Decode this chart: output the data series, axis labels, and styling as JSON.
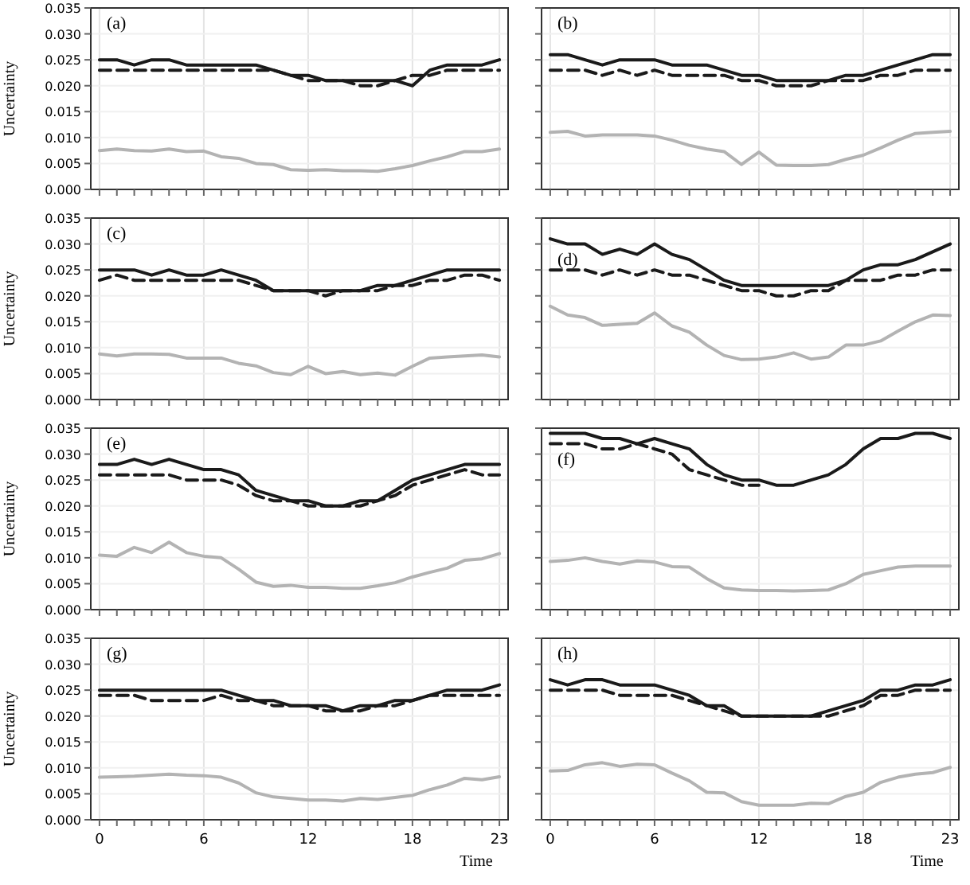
{
  "chart_data": [
    {
      "type": "line",
      "annotations": [
        "(a)"
      ],
      "ylabel": "Uncertainty",
      "xlim": [
        -0.5,
        23.5
      ],
      "ylim": [
        0,
        0.035
      ],
      "xticks": [
        0,
        {
          "value": 1,
          "label": null
        },
        {
          "value": 2,
          "label": null
        },
        {
          "value": 3,
          "label": null
        },
        {
          "value": 4,
          "label": null
        },
        {
          "value": 5,
          "label": null
        },
        6,
        {
          "value": 7,
          "label": null
        },
        {
          "value": 8,
          "label": null
        },
        {
          "value": 9,
          "label": null
        },
        {
          "value": 10,
          "label": null
        },
        {
          "value": 11,
          "label": null
        },
        12,
        {
          "value": 13,
          "label": null
        },
        {
          "value": 14,
          "label": null
        },
        {
          "value": 15,
          "label": null
        },
        {
          "value": 16,
          "label": null
        },
        {
          "value": 17,
          "label": null
        },
        18,
        {
          "value": 19,
          "label": null
        },
        {
          "value": 20,
          "label": null
        },
        {
          "value": 21,
          "label": null
        },
        {
          "value": 22,
          "label": null
        },
        23
      ],
      "yticks": [
        {
          "value": 0,
          "label": "0.000"
        },
        0.005,
        {
          "value": 0.01,
          "label": "0.010"
        },
        0.015,
        {
          "value": 0.02,
          "label": "0.020"
        },
        0.025,
        {
          "value": 0.03,
          "label": "0.030"
        },
        0.035
      ],
      "grid": true,
      "tick_labels": "y",
      "x": [
        0,
        1,
        2,
        3,
        4,
        5,
        6,
        7,
        8,
        9,
        10,
        11,
        12,
        13,
        14,
        15,
        16,
        17,
        18,
        19,
        20,
        21,
        22,
        23
      ],
      "series": [
        {
          "color": "#1a1a1a",
          "line_style": "solid",
          "values": [
            0.025,
            0.025,
            0.024,
            0.025,
            0.025,
            0.024,
            0.024,
            0.024,
            0.024,
            0.024,
            0.023,
            0.022,
            0.022,
            0.021,
            0.021,
            0.021,
            0.021,
            0.021,
            0.02,
            0.023,
            0.024,
            0.024,
            0.024,
            0.025
          ]
        },
        {
          "color": "#1a1a1a",
          "line_style": "dashed",
          "values": [
            0.023,
            0.023,
            0.023,
            0.023,
            0.023,
            0.023,
            0.023,
            0.023,
            0.023,
            0.023,
            0.023,
            0.022,
            0.021,
            0.021,
            0.021,
            0.02,
            0.02,
            0.021,
            0.022,
            0.022,
            0.023,
            0.023,
            0.023,
            0.023
          ]
        },
        {
          "color": "#b3b3b3",
          "line_style": "solid",
          "values": [
            0.0075,
            0.0078,
            0.0075,
            0.0074,
            0.0078,
            0.0073,
            0.0074,
            0.0063,
            0.006,
            0.005,
            0.0048,
            0.0038,
            0.0037,
            0.0038,
            0.0036,
            0.0036,
            0.0035,
            0.004,
            0.0046,
            0.0055,
            0.0063,
            0.0073,
            0.0073,
            0.0078
          ]
        }
      ]
    },
    {
      "type": "line",
      "annotations": [
        "(b)"
      ],
      "xlim": [
        -0.5,
        23.5
      ],
      "ylim": [
        0,
        0.035
      ],
      "xticks": [
        0,
        {
          "value": 1,
          "label": null
        },
        {
          "value": 2,
          "label": null
        },
        {
          "value": 3,
          "label": null
        },
        {
          "value": 4,
          "label": null
        },
        {
          "value": 5,
          "label": null
        },
        6,
        {
          "value": 7,
          "label": null
        },
        {
          "value": 8,
          "label": null
        },
        {
          "value": 9,
          "label": null
        },
        {
          "value": 10,
          "label": null
        },
        {
          "value": 11,
          "label": null
        },
        12,
        {
          "value": 13,
          "label": null
        },
        {
          "value": 14,
          "label": null
        },
        {
          "value": 15,
          "label": null
        },
        {
          "value": 16,
          "label": null
        },
        {
          "value": 17,
          "label": null
        },
        18,
        {
          "value": 19,
          "label": null
        },
        {
          "value": 20,
          "label": null
        },
        {
          "value": 21,
          "label": null
        },
        {
          "value": 22,
          "label": null
        },
        23
      ],
      "yticks": [
        0,
        0.005,
        0.01,
        0.015,
        0.02,
        0.025,
        0.03,
        0.035
      ],
      "grid": true,
      "tick_labels": false,
      "x": [
        0,
        1,
        2,
        3,
        4,
        5,
        6,
        7,
        8,
        9,
        10,
        11,
        12,
        13,
        14,
        15,
        16,
        17,
        18,
        19,
        20,
        21,
        22,
        23
      ],
      "series": [
        {
          "color": "#1a1a1a",
          "line_style": "solid",
          "values": [
            0.026,
            0.026,
            0.025,
            0.024,
            0.025,
            0.025,
            0.025,
            0.024,
            0.024,
            0.024,
            0.023,
            0.022,
            0.022,
            0.021,
            0.021,
            0.021,
            0.021,
            0.022,
            0.022,
            0.023,
            0.024,
            0.025,
            0.026,
            0.026
          ]
        },
        {
          "color": "#1a1a1a",
          "line_style": "dashed",
          "values": [
            0.023,
            0.023,
            0.023,
            0.022,
            0.023,
            0.022,
            0.023,
            0.022,
            0.022,
            0.022,
            0.022,
            0.021,
            0.021,
            0.02,
            0.02,
            0.02,
            0.021,
            0.021,
            0.021,
            0.022,
            0.022,
            0.023,
            0.023,
            0.023
          ]
        },
        {
          "color": "#b3b3b3",
          "line_style": "solid",
          "values": [
            0.011,
            0.0112,
            0.0103,
            0.0105,
            0.0105,
            0.0105,
            0.0103,
            0.0095,
            0.0085,
            0.0078,
            0.0073,
            0.0048,
            0.0072,
            0.0047,
            0.0046,
            0.0046,
            0.0048,
            0.0058,
            0.0066,
            0.008,
            0.0095,
            0.0108,
            0.011,
            0.0112
          ]
        }
      ]
    },
    {
      "type": "line",
      "annotations": [
        "(c)"
      ],
      "ylabel": "Uncertainty",
      "xlim": [
        -0.5,
        23.5
      ],
      "ylim": [
        0,
        0.035
      ],
      "xticks": [
        0,
        {
          "value": 1,
          "label": null
        },
        {
          "value": 2,
          "label": null
        },
        {
          "value": 3,
          "label": null
        },
        {
          "value": 4,
          "label": null
        },
        {
          "value": 5,
          "label": null
        },
        6,
        {
          "value": 7,
          "label": null
        },
        {
          "value": 8,
          "label": null
        },
        {
          "value": 9,
          "label": null
        },
        {
          "value": 10,
          "label": null
        },
        {
          "value": 11,
          "label": null
        },
        12,
        {
          "value": 13,
          "label": null
        },
        {
          "value": 14,
          "label": null
        },
        {
          "value": 15,
          "label": null
        },
        {
          "value": 16,
          "label": null
        },
        {
          "value": 17,
          "label": null
        },
        18,
        {
          "value": 19,
          "label": null
        },
        {
          "value": 20,
          "label": null
        },
        {
          "value": 21,
          "label": null
        },
        {
          "value": 22,
          "label": null
        },
        23
      ],
      "yticks": [
        {
          "value": 0,
          "label": "0.000"
        },
        0.005,
        {
          "value": 0.01,
          "label": "0.010"
        },
        0.015,
        {
          "value": 0.02,
          "label": "0.020"
        },
        0.025,
        {
          "value": 0.03,
          "label": "0.030"
        },
        0.035
      ],
      "grid": true,
      "tick_labels": "y",
      "x": [
        0,
        1,
        2,
        3,
        4,
        5,
        6,
        7,
        8,
        9,
        10,
        11,
        12,
        13,
        14,
        15,
        16,
        17,
        18,
        19,
        20,
        21,
        22,
        23
      ],
      "series": [
        {
          "color": "#1a1a1a",
          "line_style": "solid",
          "values": [
            0.025,
            0.025,
            0.025,
            0.024,
            0.025,
            0.024,
            0.024,
            0.025,
            0.024,
            0.023,
            0.021,
            0.021,
            0.021,
            0.021,
            0.021,
            0.021,
            0.022,
            0.022,
            0.023,
            0.024,
            0.025,
            0.025,
            0.025,
            0.025
          ]
        },
        {
          "color": "#1a1a1a",
          "line_style": "dashed",
          "values": [
            0.023,
            0.024,
            0.023,
            0.023,
            0.023,
            0.023,
            0.023,
            0.023,
            0.023,
            0.022,
            0.021,
            0.021,
            0.021,
            0.02,
            0.021,
            0.021,
            0.021,
            0.022,
            0.022,
            0.023,
            0.023,
            0.024,
            0.024,
            0.023
          ]
        },
        {
          "color": "#b3b3b3",
          "line_style": "solid",
          "values": [
            0.0088,
            0.0084,
            0.0088,
            0.0088,
            0.0087,
            0.008,
            0.008,
            0.008,
            0.007,
            0.0065,
            0.0052,
            0.0048,
            0.0064,
            0.005,
            0.0054,
            0.0048,
            0.0051,
            0.0047,
            0.0064,
            0.008,
            0.0082,
            0.0084,
            0.0086,
            0.0082
          ]
        }
      ]
    },
    {
      "type": "line",
      "annotations": [
        "(d)"
      ],
      "xlim": [
        -0.5,
        23.5
      ],
      "ylim": [
        0,
        0.035
      ],
      "xticks": [
        0,
        {
          "value": 1,
          "label": null
        },
        {
          "value": 2,
          "label": null
        },
        {
          "value": 3,
          "label": null
        },
        {
          "value": 4,
          "label": null
        },
        {
          "value": 5,
          "label": null
        },
        6,
        {
          "value": 7,
          "label": null
        },
        {
          "value": 8,
          "label": null
        },
        {
          "value": 9,
          "label": null
        },
        {
          "value": 10,
          "label": null
        },
        {
          "value": 11,
          "label": null
        },
        12,
        {
          "value": 13,
          "label": null
        },
        {
          "value": 14,
          "label": null
        },
        {
          "value": 15,
          "label": null
        },
        {
          "value": 16,
          "label": null
        },
        {
          "value": 17,
          "label": null
        },
        18,
        {
          "value": 19,
          "label": null
        },
        {
          "value": 20,
          "label": null
        },
        {
          "value": 21,
          "label": null
        },
        {
          "value": 22,
          "label": null
        },
        23
      ],
      "yticks": [
        0,
        0.005,
        0.01,
        0.015,
        0.02,
        0.025,
        0.03,
        0.035
      ],
      "grid": true,
      "tick_labels": false,
      "x": [
        0,
        1,
        2,
        3,
        4,
        5,
        6,
        7,
        8,
        9,
        10,
        11,
        12,
        13,
        14,
        15,
        16,
        17,
        18,
        19,
        20,
        21,
        22,
        23
      ],
      "series": [
        {
          "color": "#1a1a1a",
          "line_style": "solid",
          "values": [
            0.031,
            0.03,
            0.03,
            0.028,
            0.029,
            0.028,
            0.03,
            0.028,
            0.027,
            0.025,
            0.023,
            0.022,
            0.022,
            0.022,
            0.022,
            0.022,
            0.022,
            0.023,
            0.025,
            0.026,
            0.026,
            0.027,
            0.0285,
            0.03
          ]
        },
        {
          "color": "#1a1a1a",
          "line_style": "dashed",
          "values": [
            0.025,
            0.025,
            0.025,
            0.024,
            0.025,
            0.024,
            0.025,
            0.024,
            0.024,
            0.023,
            0.022,
            0.021,
            0.021,
            0.02,
            0.02,
            0.021,
            0.021,
            0.023,
            0.023,
            0.023,
            0.024,
            0.024,
            0.025,
            0.025
          ]
        },
        {
          "color": "#b3b3b3",
          "line_style": "solid",
          "values": [
            0.018,
            0.0163,
            0.0158,
            0.0143,
            0.0145,
            0.0147,
            0.0167,
            0.0142,
            0.013,
            0.0105,
            0.0085,
            0.0077,
            0.0078,
            0.0082,
            0.009,
            0.0078,
            0.0082,
            0.0105,
            0.0105,
            0.0113,
            0.0132,
            0.015,
            0.0163,
            0.0162
          ]
        }
      ]
    },
    {
      "type": "line",
      "annotations": [
        "(e)"
      ],
      "ylabel": "Uncertainty",
      "xlim": [
        -0.5,
        23.5
      ],
      "ylim": [
        0,
        0.035
      ],
      "xticks": [
        0,
        {
          "value": 1,
          "label": null
        },
        {
          "value": 2,
          "label": null
        },
        {
          "value": 3,
          "label": null
        },
        {
          "value": 4,
          "label": null
        },
        {
          "value": 5,
          "label": null
        },
        6,
        {
          "value": 7,
          "label": null
        },
        {
          "value": 8,
          "label": null
        },
        {
          "value": 9,
          "label": null
        },
        {
          "value": 10,
          "label": null
        },
        {
          "value": 11,
          "label": null
        },
        12,
        {
          "value": 13,
          "label": null
        },
        {
          "value": 14,
          "label": null
        },
        {
          "value": 15,
          "label": null
        },
        {
          "value": 16,
          "label": null
        },
        {
          "value": 17,
          "label": null
        },
        18,
        {
          "value": 19,
          "label": null
        },
        {
          "value": 20,
          "label": null
        },
        {
          "value": 21,
          "label": null
        },
        {
          "value": 22,
          "label": null
        },
        23
      ],
      "yticks": [
        {
          "value": 0,
          "label": "0.000"
        },
        0.005,
        {
          "value": 0.01,
          "label": "0.010"
        },
        0.015,
        {
          "value": 0.02,
          "label": "0.020"
        },
        0.025,
        {
          "value": 0.03,
          "label": "0.030"
        },
        0.035
      ],
      "grid": true,
      "tick_labels": "y",
      "x": [
        0,
        1,
        2,
        3,
        4,
        5,
        6,
        7,
        8,
        9,
        10,
        11,
        12,
        13,
        14,
        15,
        16,
        17,
        18,
        19,
        20,
        21,
        22,
        23
      ],
      "series": [
        {
          "color": "#1a1a1a",
          "line_style": "solid",
          "values": [
            0.028,
            0.028,
            0.029,
            0.028,
            0.029,
            0.028,
            0.027,
            0.027,
            0.026,
            0.023,
            0.022,
            0.021,
            0.021,
            0.02,
            0.02,
            0.021,
            0.021,
            0.023,
            0.025,
            0.026,
            0.027,
            0.028,
            0.028,
            0.028
          ]
        },
        {
          "color": "#1a1a1a",
          "line_style": "dashed",
          "values": [
            0.026,
            0.026,
            0.026,
            0.026,
            0.026,
            0.025,
            0.025,
            0.025,
            0.024,
            0.022,
            0.021,
            0.021,
            0.02,
            0.02,
            0.02,
            0.02,
            0.021,
            0.022,
            0.024,
            0.025,
            0.026,
            0.027,
            0.026,
            0.026
          ]
        },
        {
          "color": "#b3b3b3",
          "line_style": "solid",
          "values": [
            0.0105,
            0.0103,
            0.012,
            0.011,
            0.013,
            0.011,
            0.0103,
            0.01,
            0.0078,
            0.0053,
            0.0045,
            0.0047,
            0.0043,
            0.0043,
            0.0041,
            0.0041,
            0.0046,
            0.0052,
            0.0063,
            0.0072,
            0.008,
            0.0095,
            0.0098,
            0.0108
          ]
        }
      ]
    },
    {
      "type": "line",
      "annotations": [
        "(f)"
      ],
      "xlim": [
        -0.5,
        23.5
      ],
      "ylim": [
        0,
        0.035
      ],
      "xticks": [
        0,
        {
          "value": 1,
          "label": null
        },
        {
          "value": 2,
          "label": null
        },
        {
          "value": 3,
          "label": null
        },
        {
          "value": 4,
          "label": null
        },
        {
          "value": 5,
          "label": null
        },
        6,
        {
          "value": 7,
          "label": null
        },
        {
          "value": 8,
          "label": null
        },
        {
          "value": 9,
          "label": null
        },
        {
          "value": 10,
          "label": null
        },
        {
          "value": 11,
          "label": null
        },
        12,
        {
          "value": 13,
          "label": null
        },
        {
          "value": 14,
          "label": null
        },
        {
          "value": 15,
          "label": null
        },
        {
          "value": 16,
          "label": null
        },
        {
          "value": 17,
          "label": null
        },
        18,
        {
          "value": 19,
          "label": null
        },
        {
          "value": 20,
          "label": null
        },
        {
          "value": 21,
          "label": null
        },
        {
          "value": 22,
          "label": null
        },
        23
      ],
      "yticks": [
        0,
        0.005,
        0.01,
        0.015,
        0.02,
        0.025,
        0.03,
        0.035
      ],
      "grid": true,
      "tick_labels": false,
      "x": [
        0,
        1,
        2,
        3,
        4,
        5,
        6,
        7,
        8,
        9,
        10,
        11,
        12,
        13,
        14,
        15,
        16,
        17,
        18,
        19,
        20,
        21,
        22,
        23
      ],
      "series": [
        {
          "color": "#1a1a1a",
          "line_style": "solid",
          "values": [
            0.034,
            0.034,
            0.034,
            0.033,
            0.033,
            0.032,
            0.033,
            0.032,
            0.031,
            0.028,
            0.026,
            0.025,
            0.025,
            0.024,
            0.024,
            0.025,
            0.026,
            0.028,
            0.031,
            0.033,
            0.033,
            0.034,
            0.034,
            0.033
          ]
        },
        {
          "color": "#1a1a1a",
          "line_style": "dashed",
          "values": [
            0.032,
            0.032,
            0.032,
            0.031,
            0.031,
            0.032,
            0.031,
            0.03,
            0.027,
            0.026,
            0.025,
            0.024,
            0.024,
            null,
            null,
            null,
            null,
            null,
            null,
            null,
            null,
            null,
            null,
            null
          ]
        },
        {
          "color": "#b3b3b3",
          "line_style": "solid",
          "values": [
            0.0093,
            0.0095,
            0.01,
            0.0093,
            0.0088,
            0.0094,
            0.0092,
            0.0083,
            0.0082,
            0.006,
            0.0042,
            0.0038,
            0.0037,
            0.0037,
            0.0036,
            0.0037,
            0.0038,
            0.005,
            0.0068,
            0.0075,
            0.0082,
            0.0084,
            0.0084,
            0.0084
          ]
        }
      ]
    },
    {
      "type": "line",
      "annotations": [
        "(g)"
      ],
      "ylabel": "Uncertainty",
      "xlabel": "Time",
      "xlim": [
        -0.5,
        23.5
      ],
      "ylim": [
        0,
        0.035
      ],
      "xticks": [
        0,
        {
          "value": 1,
          "label": null
        },
        {
          "value": 2,
          "label": null
        },
        {
          "value": 3,
          "label": null
        },
        {
          "value": 4,
          "label": null
        },
        {
          "value": 5,
          "label": null
        },
        6,
        {
          "value": 7,
          "label": null
        },
        {
          "value": 8,
          "label": null
        },
        {
          "value": 9,
          "label": null
        },
        {
          "value": 10,
          "label": null
        },
        {
          "value": 11,
          "label": null
        },
        12,
        {
          "value": 13,
          "label": null
        },
        {
          "value": 14,
          "label": null
        },
        {
          "value": 15,
          "label": null
        },
        {
          "value": 16,
          "label": null
        },
        {
          "value": 17,
          "label": null
        },
        18,
        {
          "value": 19,
          "label": null
        },
        {
          "value": 20,
          "label": null
        },
        {
          "value": 21,
          "label": null
        },
        {
          "value": 22,
          "label": null
        },
        23
      ],
      "yticks": [
        {
          "value": 0,
          "label": "0.000"
        },
        0.005,
        {
          "value": 0.01,
          "label": "0.010"
        },
        0.015,
        {
          "value": 0.02,
          "label": "0.020"
        },
        0.025,
        {
          "value": 0.03,
          "label": "0.030"
        },
        0.035
      ],
      "grid": true,
      "x": [
        0,
        1,
        2,
        3,
        4,
        5,
        6,
        7,
        8,
        9,
        10,
        11,
        12,
        13,
        14,
        15,
        16,
        17,
        18,
        19,
        20,
        21,
        22,
        23
      ],
      "series": [
        {
          "color": "#1a1a1a",
          "line_style": "solid",
          "values": [
            0.025,
            0.025,
            0.025,
            0.025,
            0.025,
            0.025,
            0.025,
            0.025,
            0.024,
            0.023,
            0.023,
            0.022,
            0.022,
            0.022,
            0.021,
            0.022,
            0.022,
            0.023,
            0.023,
            0.024,
            0.025,
            0.025,
            0.025,
            0.026
          ]
        },
        {
          "color": "#1a1a1a",
          "line_style": "dashed",
          "values": [
            0.024,
            0.024,
            0.024,
            0.023,
            0.023,
            0.023,
            0.023,
            0.024,
            0.023,
            0.023,
            0.022,
            0.022,
            0.022,
            0.021,
            0.021,
            0.021,
            0.022,
            0.022,
            0.023,
            0.024,
            0.024,
            0.024,
            0.024,
            0.024
          ]
        },
        {
          "color": "#b3b3b3",
          "line_style": "solid",
          "values": [
            0.0082,
            0.0083,
            0.0084,
            0.0086,
            0.0088,
            0.0086,
            0.0085,
            0.0082,
            0.0071,
            0.0052,
            0.0044,
            0.0041,
            0.0038,
            0.0038,
            0.0036,
            0.0041,
            0.0039,
            0.0043,
            0.0047,
            0.0058,
            0.0067,
            0.008,
            0.0077,
            0.0083
          ]
        }
      ]
    },
    {
      "type": "line",
      "annotations": [
        "(h)"
      ],
      "xlabel": "Time",
      "xlim": [
        -0.5,
        23.5
      ],
      "ylim": [
        0,
        0.035
      ],
      "xticks": [
        0,
        {
          "value": 1,
          "label": null
        },
        {
          "value": 2,
          "label": null
        },
        {
          "value": 3,
          "label": null
        },
        {
          "value": 4,
          "label": null
        },
        {
          "value": 5,
          "label": null
        },
        6,
        {
          "value": 7,
          "label": null
        },
        {
          "value": 8,
          "label": null
        },
        {
          "value": 9,
          "label": null
        },
        {
          "value": 10,
          "label": null
        },
        {
          "value": 11,
          "label": null
        },
        12,
        {
          "value": 13,
          "label": null
        },
        {
          "value": 14,
          "label": null
        },
        {
          "value": 15,
          "label": null
        },
        {
          "value": 16,
          "label": null
        },
        {
          "value": 17,
          "label": null
        },
        18,
        {
          "value": 19,
          "label": null
        },
        {
          "value": 20,
          "label": null
        },
        {
          "value": 21,
          "label": null
        },
        {
          "value": 22,
          "label": null
        },
        23
      ],
      "yticks": [
        0,
        0.005,
        0.01,
        0.015,
        0.02,
        0.025,
        0.03,
        0.035
      ],
      "grid": true,
      "tick_labels": "x",
      "x": [
        0,
        1,
        2,
        3,
        4,
        5,
        6,
        7,
        8,
        9,
        10,
        11,
        12,
        13,
        14,
        15,
        16,
        17,
        18,
        19,
        20,
        21,
        22,
        23
      ],
      "series": [
        {
          "color": "#1a1a1a",
          "line_style": "solid",
          "values": [
            0.027,
            0.026,
            0.027,
            0.027,
            0.026,
            0.026,
            0.026,
            0.025,
            0.024,
            0.022,
            0.022,
            0.02,
            0.02,
            0.02,
            0.02,
            0.02,
            0.021,
            0.022,
            0.023,
            0.025,
            0.025,
            0.026,
            0.026,
            0.027
          ]
        },
        {
          "color": "#1a1a1a",
          "line_style": "dashed",
          "values": [
            0.025,
            0.025,
            0.025,
            0.025,
            0.024,
            0.024,
            0.024,
            0.024,
            0.023,
            0.022,
            0.021,
            0.02,
            0.02,
            0.02,
            0.02,
            0.02,
            0.02,
            0.021,
            0.022,
            0.024,
            0.024,
            0.025,
            0.025,
            0.025
          ]
        },
        {
          "color": "#b3b3b3",
          "line_style": "solid",
          "values": [
            0.0094,
            0.0095,
            0.0106,
            0.011,
            0.0103,
            0.0107,
            0.0106,
            0.009,
            0.0075,
            0.0053,
            0.0052,
            0.0035,
            0.0028,
            0.0028,
            0.0028,
            0.0032,
            0.0031,
            0.0045,
            0.0053,
            0.0072,
            0.0082,
            0.0088,
            0.0091,
            0.0101
          ]
        }
      ]
    }
  ]
}
